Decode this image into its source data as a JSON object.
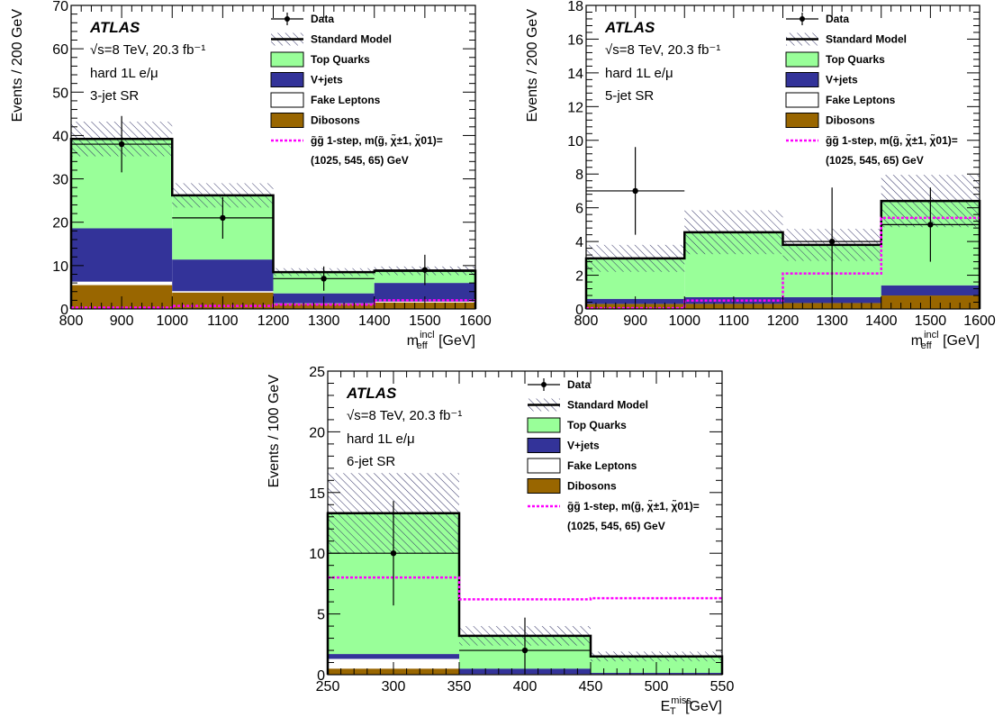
{
  "colors": {
    "top_quarks": "#99ff99",
    "vjets": "#333399",
    "fake_leptons": "#ffffff",
    "dibosons": "#996600",
    "signal": "#ff00ff",
    "uncertainty_hatch": "#333366",
    "standard_model": "#000000"
  },
  "legend": {
    "data": "Data",
    "standard_model": "Standard Model",
    "top_quarks": "Top Quarks",
    "vjets": "V+jets",
    "fake_leptons": "Fake Leptons",
    "dibosons": "Dibosons",
    "signal_line1": "g̃g̃ 1-step, m(g̃, χ̃±1, χ̃01)=",
    "signal_line2": "(1025, 545, 65) GeV"
  },
  "labels": {
    "atlas": "ATLAS",
    "energy_lumi": "√s=8 TeV, 20.3 fb⁻¹",
    "channel": "hard 1L e/μ",
    "meff_x": "m",
    "meff_x_sup": "incl",
    "meff_x_sub": "eff",
    "met_x": "E",
    "met_x_sup": "miss",
    "met_x_sub": "T",
    "x_unit": "[GeV]"
  },
  "chart_data": [
    {
      "type": "bar",
      "name": "3-jet SR",
      "region_label": "3-jet SR",
      "ylabel": "Events / 200 GeV",
      "xlabel": "m_eff^incl [GeV]",
      "xlim": [
        800,
        1600
      ],
      "ylim": [
        0,
        70
      ],
      "xticks": [
        800,
        900,
        1000,
        1100,
        1200,
        1300,
        1400,
        1500,
        1600
      ],
      "yticks": [
        0,
        10,
        20,
        30,
        40,
        50,
        60,
        70
      ],
      "bin_edges": [
        800,
        1000,
        1200,
        1400,
        1600
      ],
      "stack": {
        "dibosons": [
          5.5,
          3.8,
          1.2,
          1.5
        ],
        "fake_leptons": [
          0.8,
          0.3,
          0.1,
          0.2
        ],
        "vjets": [
          12.3,
          7.3,
          2.3,
          4.3
        ],
        "top_quarks": [
          20.6,
          14.8,
          4.9,
          2.8
        ]
      },
      "standard_model": [
        39.2,
        26.2,
        8.5,
        8.8
      ],
      "uncertainty": [
        4.0,
        2.8,
        0.9,
        1.0
      ],
      "data": [
        38,
        21,
        7,
        9
      ],
      "data_err": [
        6.5,
        4.8,
        2.8,
        3.5
      ],
      "signal": [
        0.3,
        0.7,
        1.0,
        2.0
      ]
    },
    {
      "type": "bar",
      "name": "5-jet SR",
      "region_label": "5-jet SR",
      "ylabel": "Events / 200 GeV",
      "xlabel": "m_eff^incl [GeV]",
      "xlim": [
        800,
        1600
      ],
      "ylim": [
        0,
        18
      ],
      "xticks": [
        800,
        900,
        1000,
        1100,
        1200,
        1300,
        1400,
        1500,
        1600
      ],
      "yticks": [
        0,
        2,
        4,
        6,
        8,
        10,
        12,
        14,
        16,
        18
      ],
      "bin_edges": [
        800,
        1000,
        1200,
        1400,
        1600
      ],
      "stack": {
        "dibosons": [
          0.3,
          0.3,
          0.35,
          0.8
        ],
        "fake_leptons": [
          0.0,
          0.0,
          0.0,
          0.0
        ],
        "vjets": [
          0.3,
          0.4,
          0.35,
          0.6
        ],
        "top_quarks": [
          2.4,
          3.85,
          3.1,
          5.0
        ]
      },
      "standard_model": [
        3.0,
        4.55,
        3.8,
        6.4
      ],
      "uncertainty": [
        0.8,
        1.3,
        0.95,
        1.55
      ],
      "data": [
        7,
        null,
        4,
        5
      ],
      "data_err": [
        2.6,
        null,
        3.2,
        2.2
      ],
      "signal": [
        0.05,
        0.5,
        2.1,
        5.4
      ]
    },
    {
      "type": "bar",
      "name": "6-jet SR",
      "region_label": "6-jet SR",
      "ylabel": "Events / 100 GeV",
      "xlabel": "E_T^miss [GeV]",
      "xlim": [
        250,
        550
      ],
      "ylim": [
        0,
        25
      ],
      "xticks": [
        250,
        300,
        350,
        400,
        450,
        500,
        550
      ],
      "yticks": [
        0,
        5,
        10,
        15,
        20,
        25
      ],
      "bin_edges": [
        250,
        350,
        450,
        550
      ],
      "stack": {
        "dibosons": [
          0.5,
          0.05,
          0.05
        ],
        "fake_leptons": [
          0.8,
          0.0,
          0.0
        ],
        "vjets": [
          0.4,
          0.45,
          0.1
        ],
        "top_quarks": [
          11.6,
          2.7,
          1.35
        ]
      },
      "standard_model": [
        13.3,
        3.2,
        1.5
      ],
      "uncertainty": [
        3.3,
        0.8,
        0.4
      ],
      "data": [
        10,
        2,
        null
      ],
      "data_err": [
        4.3,
        2.7,
        null
      ],
      "signal": [
        8.0,
        6.2,
        6.3
      ]
    }
  ]
}
